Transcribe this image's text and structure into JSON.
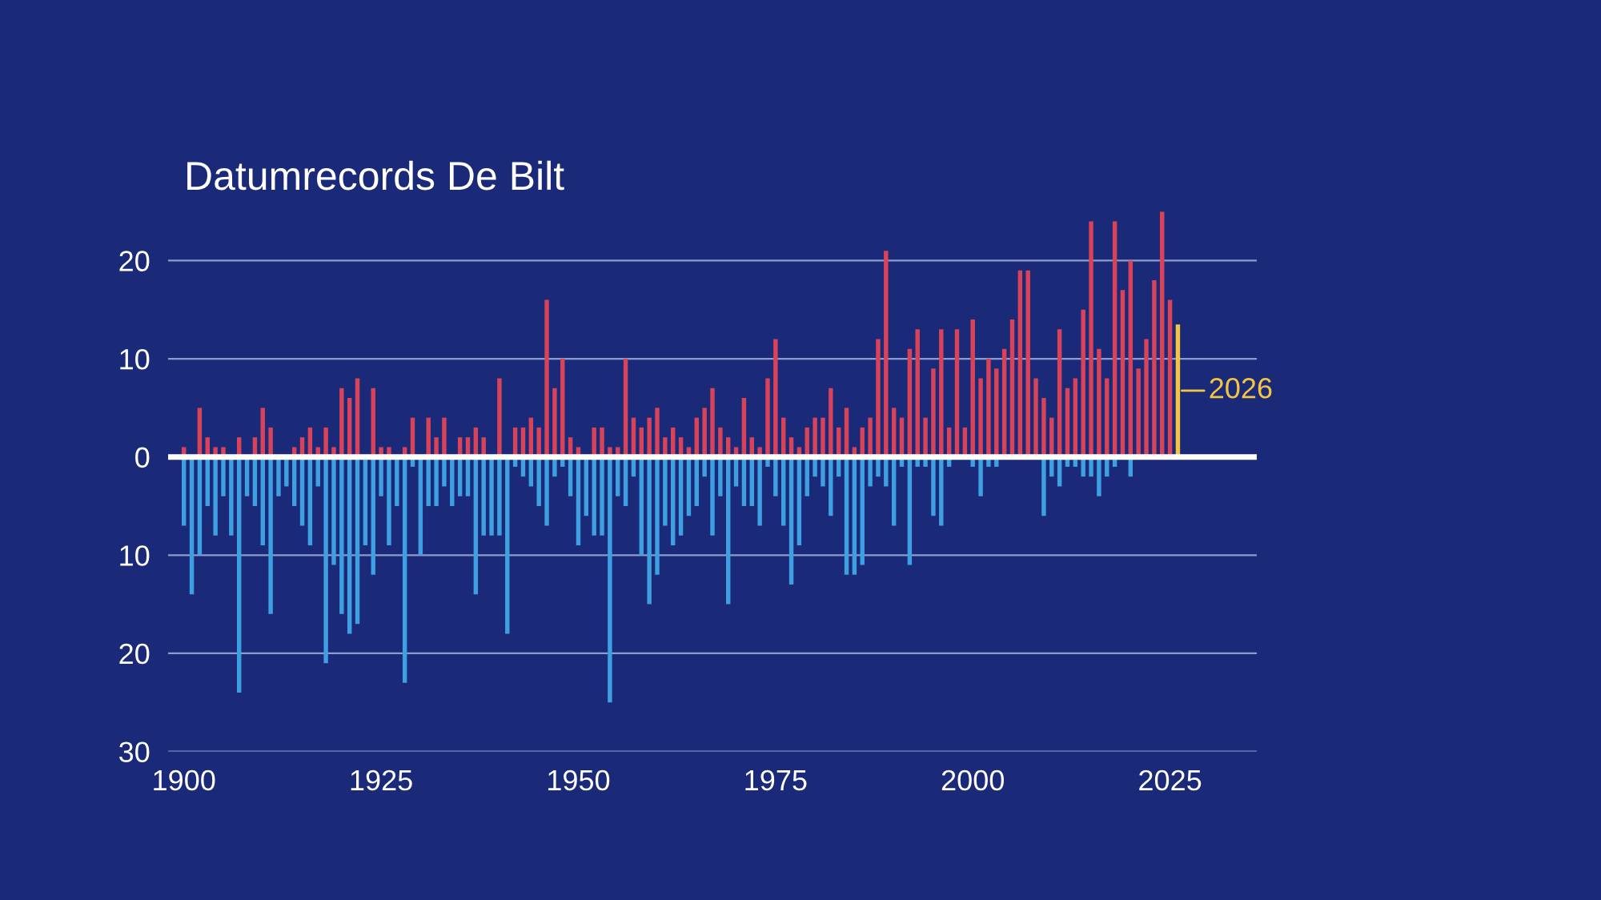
{
  "chart_data": {
    "type": "bar",
    "title": "Datumrecords De Bilt",
    "x": [
      1900,
      1901,
      1902,
      1903,
      1904,
      1905,
      1906,
      1907,
      1908,
      1909,
      1910,
      1911,
      1912,
      1913,
      1914,
      1915,
      1916,
      1917,
      1918,
      1919,
      1920,
      1921,
      1922,
      1923,
      1924,
      1925,
      1926,
      1927,
      1928,
      1929,
      1930,
      1931,
      1932,
      1933,
      1934,
      1935,
      1936,
      1937,
      1938,
      1939,
      1940,
      1941,
      1942,
      1943,
      1944,
      1945,
      1946,
      1947,
      1948,
      1949,
      1950,
      1951,
      1952,
      1953,
      1954,
      1955,
      1956,
      1957,
      1958,
      1959,
      1960,
      1961,
      1962,
      1963,
      1964,
      1965,
      1966,
      1967,
      1968,
      1969,
      1970,
      1971,
      1972,
      1973,
      1974,
      1975,
      1976,
      1977,
      1978,
      1979,
      1980,
      1981,
      1982,
      1983,
      1984,
      1985,
      1986,
      1987,
      1988,
      1989,
      1990,
      1991,
      1992,
      1993,
      1994,
      1995,
      1996,
      1997,
      1998,
      1999,
      2000,
      2001,
      2002,
      2003,
      2004,
      2005,
      2006,
      2007,
      2008,
      2009,
      2010,
      2011,
      2012,
      2013,
      2014,
      2015,
      2016,
      2017,
      2018,
      2019,
      2020,
      2021,
      2022,
      2023,
      2024,
      2025,
      2026
    ],
    "series": [
      {
        "color": "#d9435a",
        "values": [
          1,
          0,
          5,
          2,
          1,
          1,
          0,
          2,
          0,
          2,
          5,
          3,
          0,
          0,
          1,
          2,
          3,
          1,
          3,
          1,
          7,
          6,
          8,
          0,
          7,
          1,
          1,
          0,
          1,
          4,
          0,
          4,
          2,
          4,
          0,
          2,
          2,
          3,
          2,
          0,
          8,
          0,
          3,
          3,
          4,
          3,
          16,
          7,
          10,
          2,
          1,
          0,
          3,
          3,
          1,
          1,
          10,
          4,
          3,
          4,
          5,
          2,
          3,
          2,
          1,
          4,
          5,
          7,
          3,
          2,
          1,
          6,
          2,
          1,
          8,
          12,
          4,
          2,
          1,
          3,
          4,
          4,
          7,
          3,
          5,
          1,
          3,
          4,
          12,
          21,
          5,
          4,
          11,
          13,
          4,
          9,
          13,
          3,
          13,
          3,
          14,
          8,
          10,
          9,
          11,
          14,
          19,
          19,
          8,
          6,
          4,
          13,
          7,
          8,
          15,
          24,
          11,
          8,
          24,
          17,
          20,
          9,
          12,
          18,
          25,
          16,
          null
        ]
      },
      {
        "color": "#3ea0e0",
        "values": [
          -7,
          -14,
          -10,
          -5,
          -8,
          -4,
          -8,
          -24,
          -4,
          -5,
          -9,
          -16,
          -4,
          -3,
          -5,
          -7,
          -9,
          -3,
          -21,
          -11,
          -16,
          -18,
          -17,
          -9,
          -12,
          -4,
          -9,
          -5,
          -23,
          -1,
          -10,
          -5,
          -5,
          -3,
          -5,
          -4,
          -4,
          -14,
          -8,
          -8,
          -8,
          -18,
          -1,
          -2,
          -3,
          -5,
          -7,
          -2,
          -1,
          -4,
          -9,
          -6,
          -8,
          -8,
          -25,
          -4,
          -5,
          -2,
          -10,
          -15,
          -12,
          -7,
          -9,
          -8,
          -6,
          -5,
          -2,
          -8,
          -4,
          -15,
          -3,
          -5,
          -5,
          -7,
          -1,
          -4,
          -7,
          -13,
          -9,
          -4,
          -2,
          -3,
          -6,
          -2,
          -12,
          -12,
          -11,
          -3,
          -2,
          -3,
          -7,
          -1,
          -11,
          -1,
          -1,
          -6,
          -7,
          -1,
          0,
          0,
          -1,
          -4,
          -1,
          -1,
          0,
          0,
          0,
          0,
          0,
          -6,
          -2,
          -3,
          -1,
          -1,
          -2,
          -2,
          -4,
          -2,
          -1,
          0,
          -2,
          0,
          0,
          0,
          0,
          0,
          null
        ]
      },
      {
        "name": "2026",
        "color": "#f5c542",
        "values": [
          null,
          null,
          null,
          null,
          null,
          null,
          null,
          null,
          null,
          null,
          null,
          null,
          null,
          null,
          null,
          null,
          null,
          null,
          null,
          null,
          null,
          null,
          null,
          null,
          null,
          null,
          null,
          null,
          null,
          null,
          null,
          null,
          null,
          null,
          null,
          null,
          null,
          null,
          null,
          null,
          null,
          null,
          null,
          null,
          null,
          null,
          null,
          null,
          null,
          null,
          null,
          null,
          null,
          null,
          null,
          null,
          null,
          null,
          null,
          null,
          null,
          null,
          null,
          null,
          null,
          null,
          null,
          null,
          null,
          null,
          null,
          null,
          null,
          null,
          null,
          null,
          null,
          null,
          null,
          null,
          null,
          null,
          null,
          null,
          null,
          null,
          null,
          null,
          null,
          null,
          null,
          null,
          null,
          null,
          null,
          null,
          null,
          null,
          null,
          null,
          null,
          null,
          null,
          null,
          null,
          null,
          null,
          null,
          null,
          null,
          null,
          null,
          null,
          null,
          null,
          null,
          null,
          null,
          null,
          null,
          null,
          null,
          null,
          null,
          null,
          null,
          13.5
        ]
      }
    ],
    "xlim": [
      1898,
      2036
    ],
    "xticks": [
      1900,
      1925,
      1950,
      1975,
      2000,
      2025
    ],
    "ylim": [
      -30,
      25
    ],
    "stacked": true,
    "yticks": [
      {
        "value": -30,
        "label": "30"
      },
      {
        "value": -20,
        "label": "20"
      },
      {
        "value": -10,
        "label": "10"
      },
      0,
      10,
      20
    ],
    "grid": "y",
    "ref_lines": [
      {
        "axis": "y",
        "value": 0,
        "color": "#ffffff"
      }
    ]
  }
}
